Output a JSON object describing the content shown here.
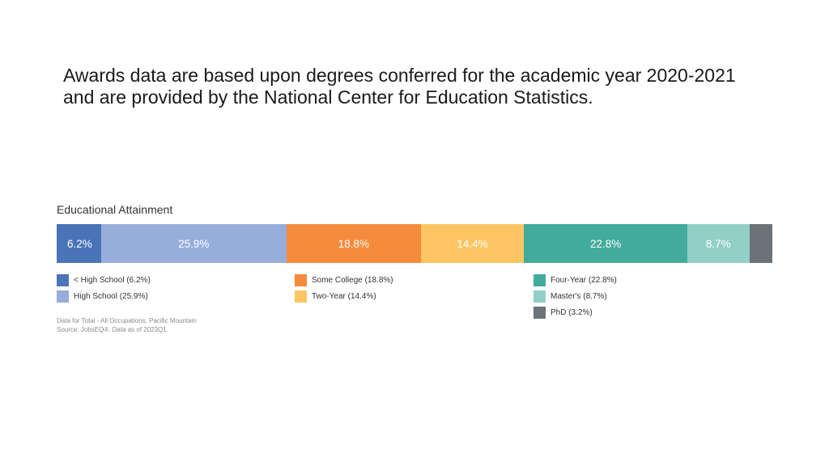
{
  "intro": {
    "line1": "Awards data are based upon degrees conferred for the academic year 2020-2021",
    "line2": "and are provided by the National Center for Education Statistics."
  },
  "chart_data": {
    "type": "bar",
    "orientation": "horizontal-stacked-100",
    "title": "Educational Attainment",
    "categories": [
      "< High School",
      "High School",
      "Some College",
      "Two-Year",
      "Four-Year",
      "Master's",
      "PhD"
    ],
    "values": [
      6.2,
      25.9,
      18.8,
      14.4,
      22.8,
      8.7,
      3.2
    ],
    "data_labels": [
      "6.2%",
      "25.9%",
      "18.8%",
      "14.4%",
      "22.8%",
      "8.7%",
      ""
    ],
    "colors": [
      "#4a74b8",
      "#97addb",
      "#f58b3c",
      "#fdc564",
      "#42ab9c",
      "#92cfc6",
      "#6b7378"
    ],
    "legend": [
      "< High School (6.2%)",
      "High School (25.9%)",
      "Some College (18.8%)",
      "Two-Year (14.4%)",
      "Four-Year (22.8%)",
      "Master's (8.7%)",
      "PhD (3.2%)"
    ],
    "legend_placement": "bottom",
    "notes": [
      "Data for Total - All Occupations, Pacific Mountain",
      "Source: JobsEQ®. Data as of 2023Q1."
    ]
  }
}
